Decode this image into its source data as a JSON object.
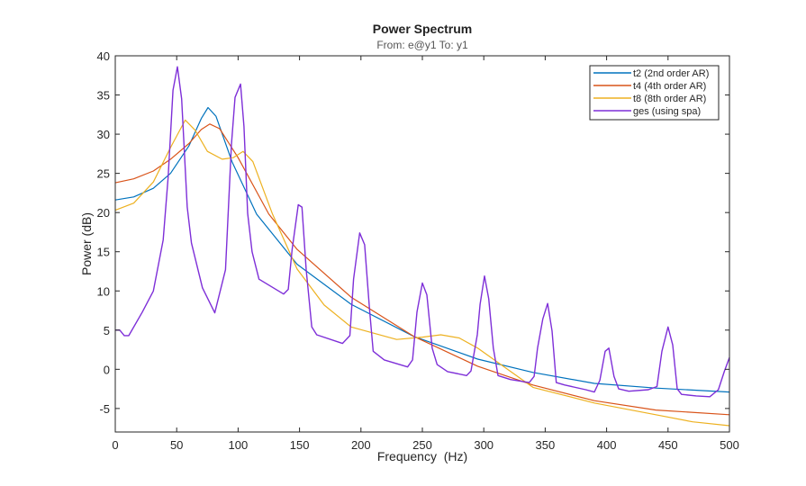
{
  "chart_data": {
    "type": "line",
    "title": "Power Spectrum",
    "subtitle": "From: e@y1  To: y1",
    "xlabel": "Frequency  (Hz)",
    "ylabel": "Power (dB)",
    "xlim": [
      0,
      500
    ],
    "ylim": [
      -8,
      40
    ],
    "xticks": [
      0,
      50,
      100,
      150,
      200,
      250,
      300,
      350,
      400,
      450,
      500
    ],
    "yticks": [
      -5,
      0,
      5,
      10,
      15,
      20,
      25,
      30,
      35,
      40
    ],
    "xtick_labels": [
      "0",
      "50",
      "100",
      "150",
      "200",
      "250",
      "300",
      "350",
      "400",
      "450",
      "500"
    ],
    "ytick_labels": [
      "-5",
      "0",
      "5",
      "10",
      "15",
      "20",
      "25",
      "30",
      "35",
      "40"
    ],
    "grid": false,
    "legend_position": "top-right",
    "series": [
      {
        "name": "t2 (2nd order AR)",
        "color": "#0072BD",
        "x": [
          0,
          15,
          31,
          45,
          60,
          70,
          75.5,
          82,
          95,
          115,
          148,
          192,
          243,
          295,
          340,
          390,
          440,
          500
        ],
        "y": [
          21.6,
          22.0,
          23.1,
          25.0,
          28.5,
          32.0,
          33.4,
          32.3,
          26.5,
          19.8,
          13.4,
          8.3,
          4.2,
          1.3,
          -0.4,
          -1.8,
          -2.4,
          -2.9
        ]
      },
      {
        "name": "t4 (4th order AR)",
        "color": "#D95319",
        "x": [
          0,
          15,
          31,
          45,
          60,
          70,
          77,
          85,
          100,
          125,
          148,
          192,
          243,
          295,
          340,
          390,
          440,
          500
        ],
        "y": [
          23.8,
          24.3,
          25.3,
          26.8,
          28.8,
          30.6,
          31.3,
          30.7,
          27.0,
          19.8,
          15.3,
          9.2,
          4.2,
          0.4,
          -2.0,
          -4.0,
          -5.2,
          -5.8
        ]
      },
      {
        "name": "t8 (8th order AR)",
        "color": "#EDB120",
        "x": [
          0,
          15,
          31,
          45,
          57,
          65,
          75,
          87,
          96,
          104,
          112,
          128,
          148,
          170,
          192,
          229,
          250,
          265,
          280,
          295,
          340,
          390,
          440,
          470,
          500
        ],
        "y": [
          20.3,
          21.2,
          23.9,
          28.3,
          31.8,
          30.5,
          27.8,
          26.8,
          27.0,
          27.8,
          26.5,
          19.8,
          12.8,
          8.2,
          5.4,
          3.8,
          4.1,
          4.4,
          4.0,
          2.7,
          -2.3,
          -4.3,
          -5.8,
          -6.7,
          -7.2
        ]
      },
      {
        "name": "ges (using spa)",
        "color": "#7E2FD8",
        "x": [
          0,
          3.7,
          7.3,
          11,
          22,
          31,
          39,
          43,
          47,
          50.6,
          54,
          58.6,
          62,
          71,
          81,
          89.7,
          94.6,
          97.5,
          102,
          104.8,
          107.8,
          111.4,
          117,
          137,
          140.8,
          144,
          149,
          152,
          155.4,
          160,
          164,
          185,
          191,
          194,
          199,
          203,
          207,
          210,
          219,
          238,
          242,
          245.6,
          250,
          253.7,
          258,
          262,
          270.5,
          286,
          289.6,
          294.7,
          297,
          300.6,
          304,
          307.8,
          311.6,
          321.7,
          337,
          341,
          343.8,
          348,
          352,
          355.6,
          359,
          366,
          383,
          390,
          394.5,
          398.8,
          401.8,
          406,
          409.8,
          418,
          434,
          441,
          445,
          450,
          453.8,
          457.5,
          461,
          473,
          484,
          491,
          496,
          500
        ],
        "y": [
          5.0,
          5.0,
          4.3,
          4.3,
          7.3,
          10.0,
          16.5,
          24.5,
          35.6,
          38.6,
          34.5,
          20.7,
          16.1,
          10.4,
          7.2,
          12.7,
          28.7,
          34.7,
          36.4,
          31.0,
          19.9,
          15.0,
          11.5,
          9.6,
          10.2,
          15.3,
          21.0,
          20.7,
          12.7,
          5.4,
          4.4,
          3.3,
          4.3,
          11.5,
          17.4,
          15.9,
          7.7,
          2.3,
          1.2,
          0.3,
          1.2,
          7.3,
          11.0,
          9.5,
          2.7,
          0.6,
          -0.3,
          -0.8,
          -0.2,
          4.4,
          8.3,
          11.9,
          9.0,
          2.7,
          -0.8,
          -1.3,
          -1.7,
          -0.9,
          2.7,
          6.4,
          8.4,
          4.9,
          -1.7,
          -2.0,
          -2.6,
          -2.9,
          -1.4,
          2.3,
          2.7,
          -0.9,
          -2.5,
          -2.8,
          -2.6,
          -2.2,
          2.3,
          5.4,
          3.1,
          -2.5,
          -3.2,
          -3.4,
          -3.5,
          -2.6,
          -0.2,
          1.5
        ]
      }
    ]
  }
}
